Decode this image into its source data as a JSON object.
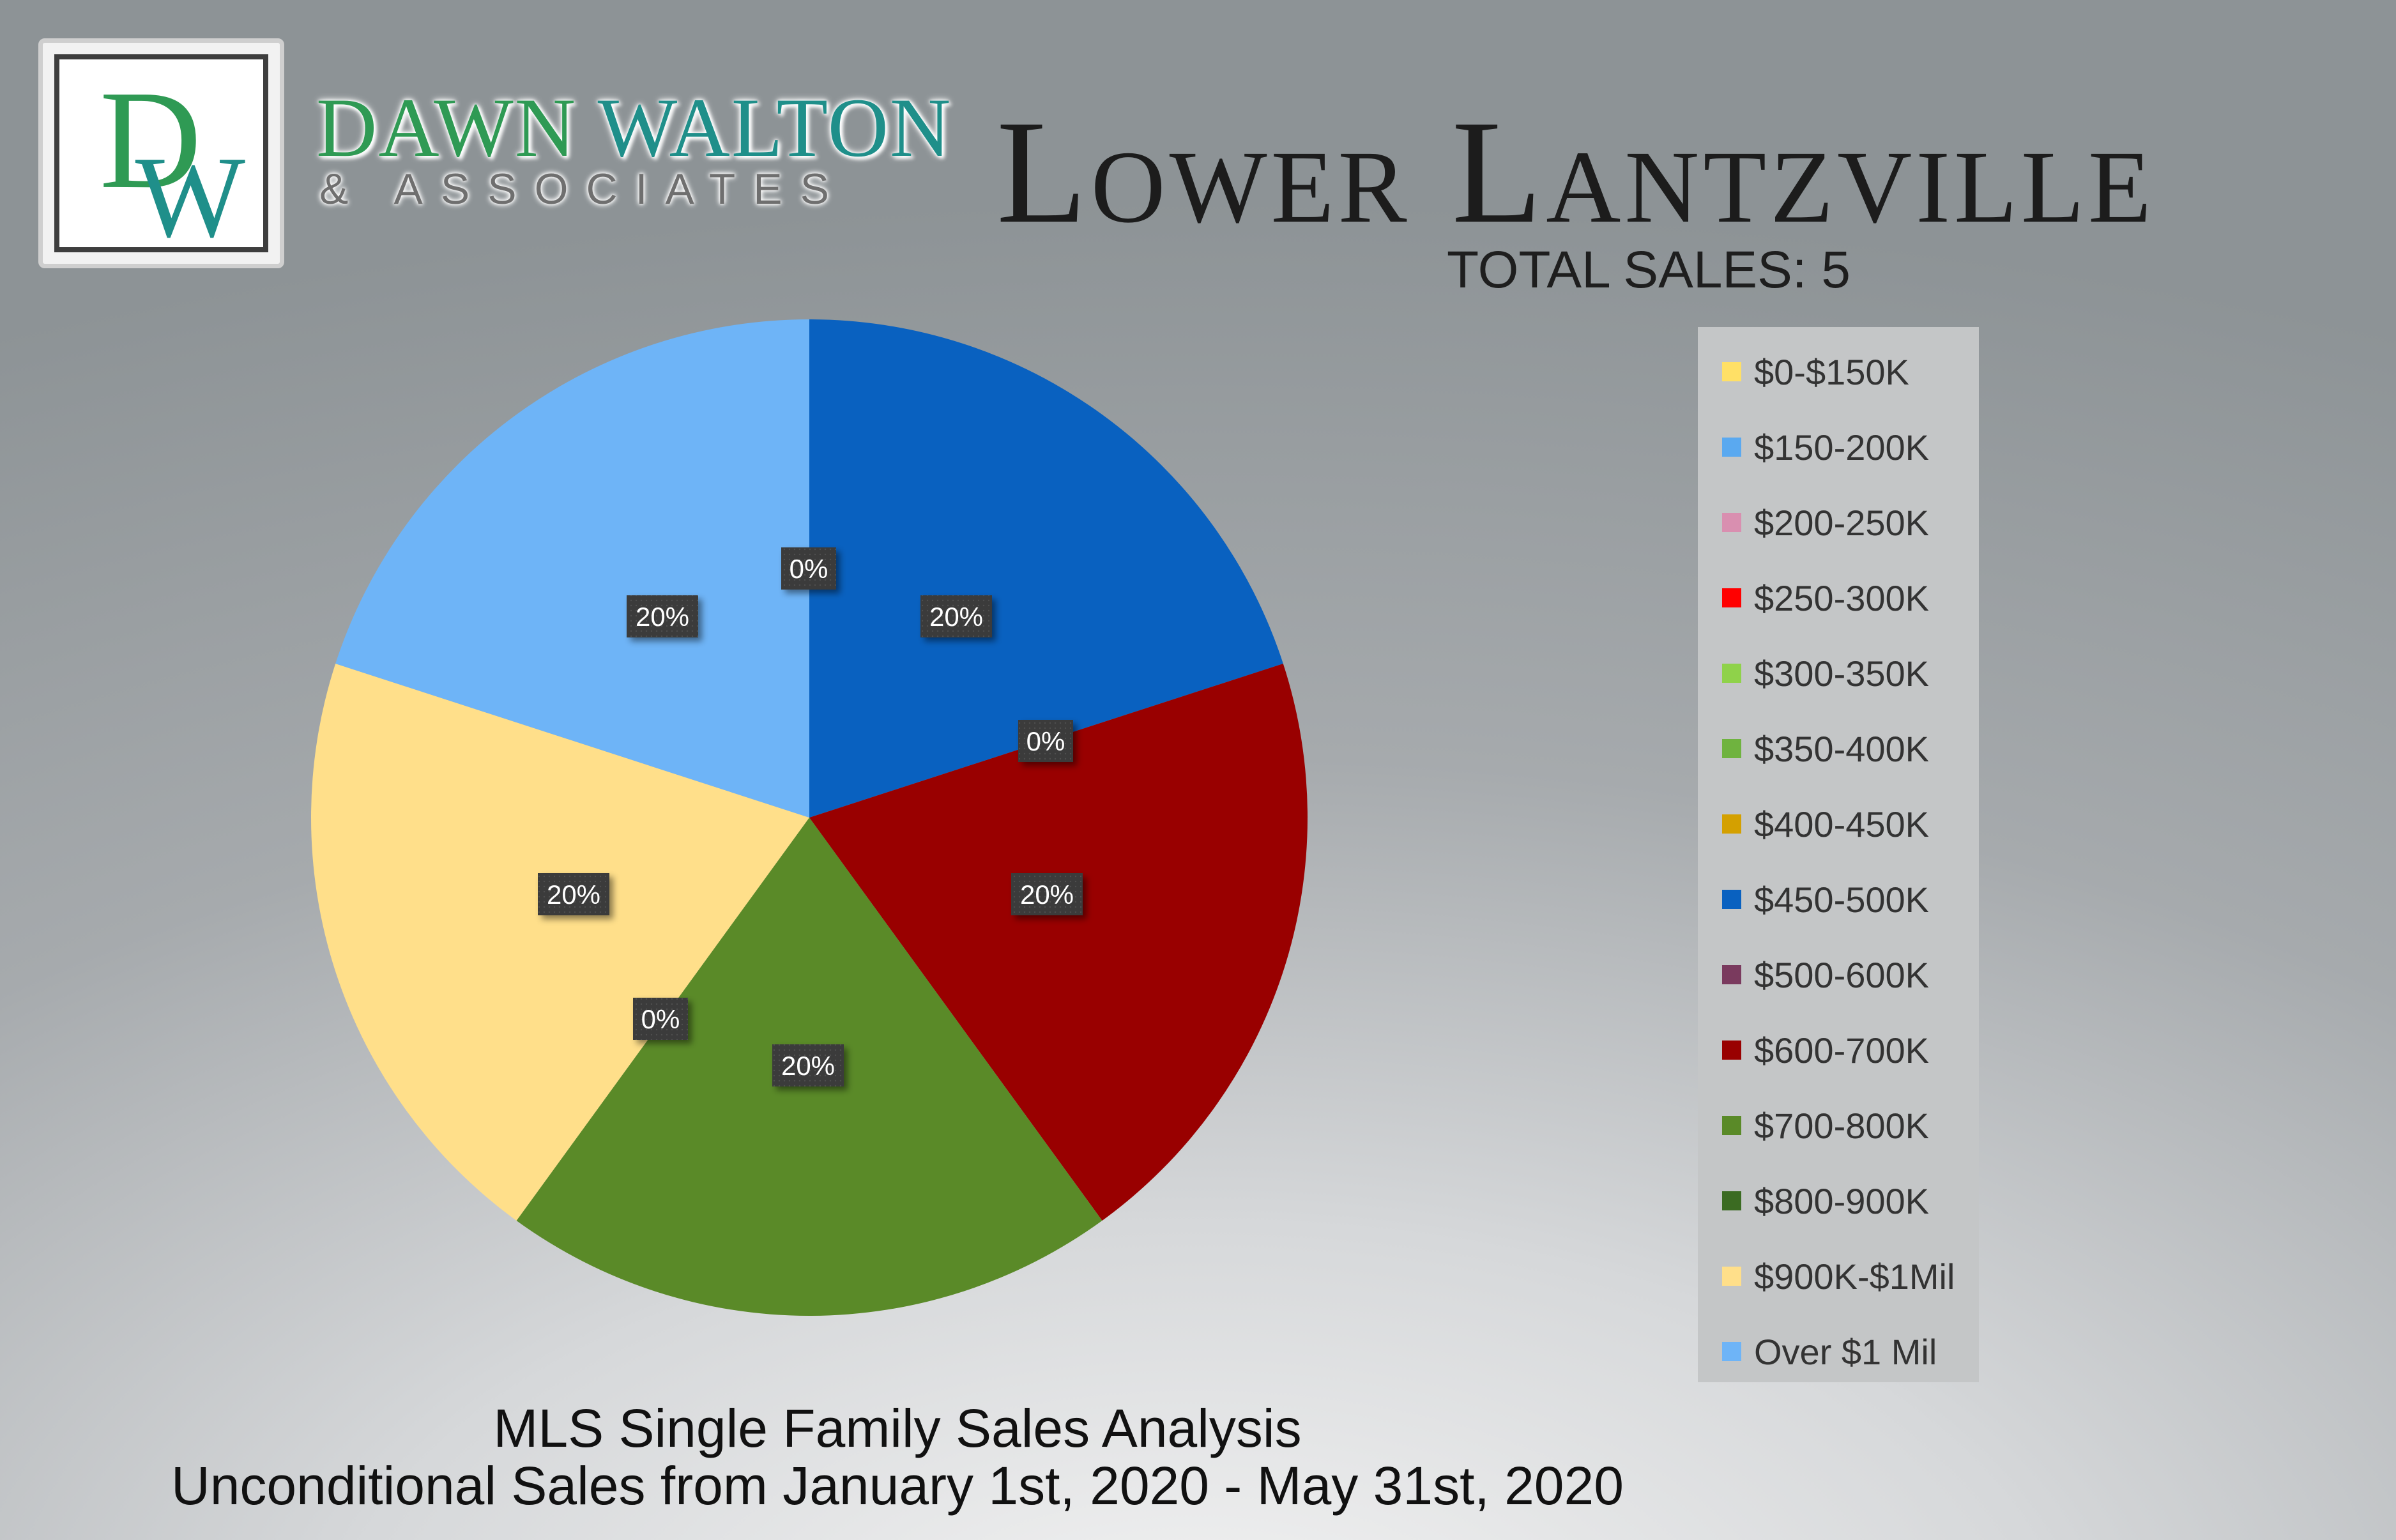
{
  "logo": {
    "initials": "DW",
    "name_first": "DAWN",
    "name_last": "WALTON",
    "tagline": "& ASSOCIATES"
  },
  "header": {
    "title": "Lower Lantzville",
    "total_sales": "TOTAL SALES: 5"
  },
  "footer": {
    "line1": "MLS Single Family Sales Analysis",
    "line2": "Unconditional Sales from January 1st, 2020 - May 31st, 2020"
  },
  "chart_data": {
    "type": "pie",
    "title": "",
    "legend_position": "right",
    "categories": [
      "$0-$150K",
      "$150-200K",
      "$200-250K",
      "$250-300K",
      "$300-350K",
      "$350-400K",
      "$400-450K",
      "$450-500K",
      "$500-600K",
      "$600-700K",
      "$700-800K",
      "$800-900K",
      "$900K-$1Mil",
      "Over $1 Mil"
    ],
    "values": [
      0,
      0,
      0,
      0,
      0,
      0,
      0,
      20,
      0,
      20,
      20,
      0,
      20,
      20
    ],
    "colors": [
      "#ffe066",
      "#5aa9f0",
      "#d98fb0",
      "#ff0000",
      "#8fd24a",
      "#6fb33f",
      "#d4a000",
      "#0961c0",
      "#7a3a5e",
      "#990000",
      "#5a8a28",
      "#3b6b22",
      "#ffdf8a",
      "#6eb4f7"
    ],
    "data_labels": [
      {
        "text": "0%"
      },
      {
        "text": "20%"
      },
      {
        "text": "0%"
      },
      {
        "text": "20%"
      },
      {
        "text": "20%"
      },
      {
        "text": "0%"
      },
      {
        "text": "20%"
      },
      {
        "text": "20%"
      }
    ],
    "label_format": "percent"
  }
}
